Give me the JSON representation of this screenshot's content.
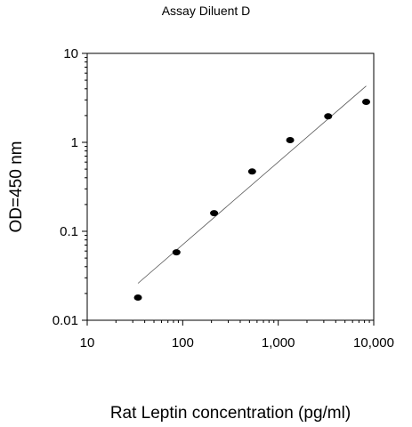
{
  "chart_data": {
    "type": "scatter",
    "title": "Assay Diluent D",
    "xlabel": "Rat Leptin concentration (pg/ml)",
    "ylabel": "OD=450 nm",
    "x_scale": "log",
    "y_scale": "log",
    "xlim": [
      10,
      10000
    ],
    "ylim": [
      0.01,
      10
    ],
    "x_ticks": [
      10,
      100,
      1000,
      10000
    ],
    "x_tick_labels": [
      "10",
      "100",
      "1,000",
      "10,000"
    ],
    "y_ticks": [
      0.01,
      0.1,
      1,
      10
    ],
    "y_tick_labels": [
      "0.01",
      "0.1",
      "1",
      "10"
    ],
    "grid": false,
    "series": [
      {
        "x": [
          34,
          86,
          213,
          533,
          1333,
          3333,
          8333
        ],
        "y": [
          0.018,
          0.058,
          0.16,
          0.47,
          1.06,
          1.96,
          2.85
        ]
      }
    ],
    "fit_line": {
      "x": [
        34,
        8333
      ],
      "y": [
        0.026,
        4.3
      ]
    },
    "colors": {
      "points": "#000000",
      "line": "#555555",
      "axes": "#000000"
    }
  }
}
